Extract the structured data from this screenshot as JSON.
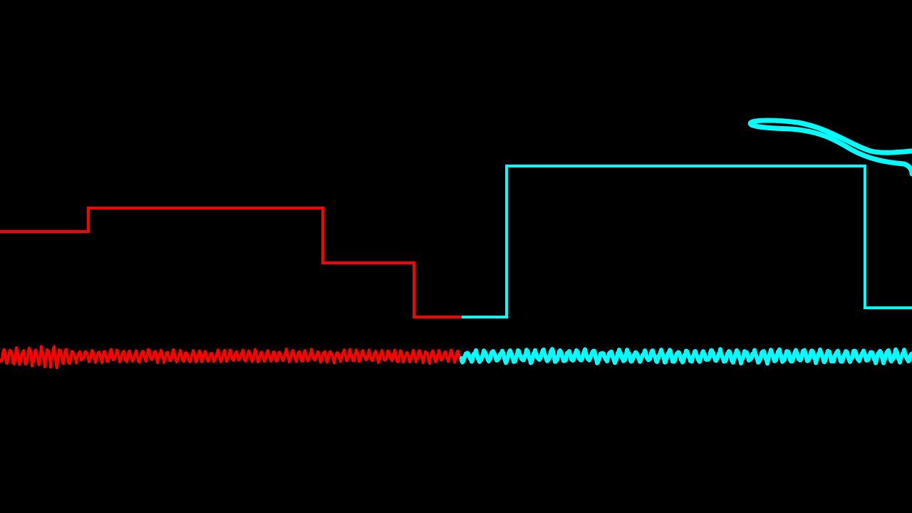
{
  "colors": {
    "background": "#000000",
    "red": "#ff0000",
    "cyan": "#00ffff"
  },
  "traces": [
    {
      "name": "red-step-trace",
      "color_key": "red",
      "kind": "step"
    },
    {
      "name": "cyan-step-trace",
      "color_key": "cyan",
      "kind": "step"
    },
    {
      "name": "red-oscillation-trace",
      "color_key": "red",
      "kind": "wave"
    },
    {
      "name": "cyan-oscillation-trace",
      "color_key": "cyan",
      "kind": "wave"
    },
    {
      "name": "cyan-swoosh-trace",
      "color_key": "cyan",
      "kind": "curve"
    }
  ]
}
